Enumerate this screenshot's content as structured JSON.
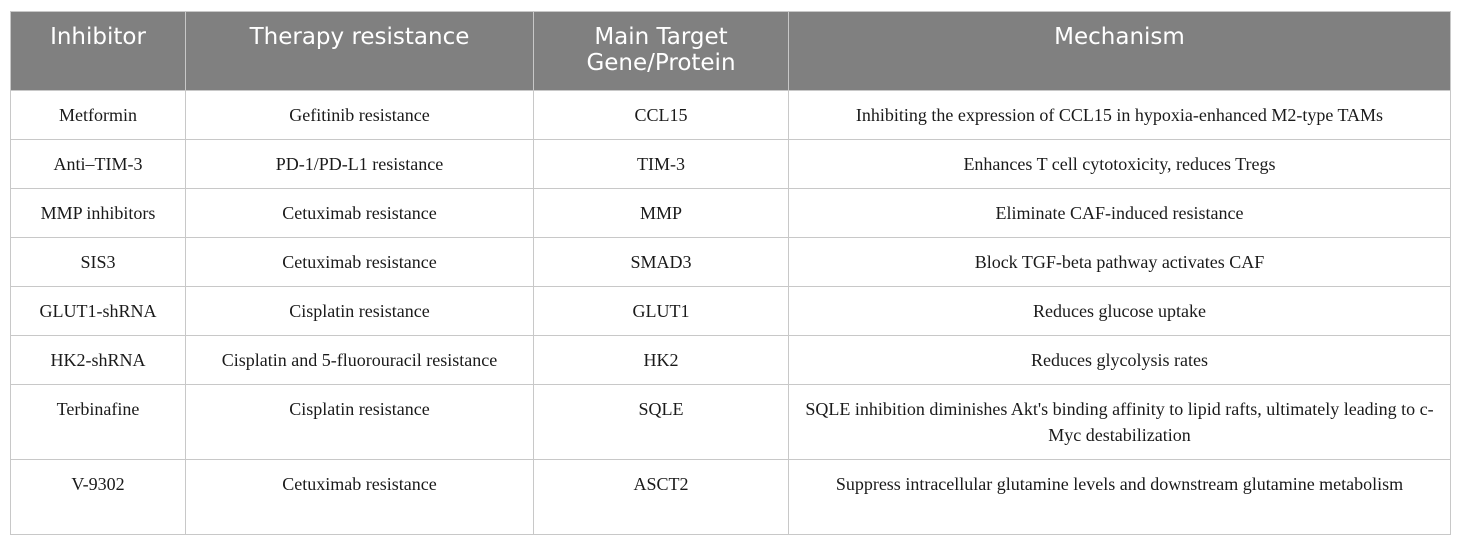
{
  "table": {
    "headers": [
      "Inhibitor",
      "Therapy resistance",
      "Main Target Gene/Protein",
      "Mechanism"
    ],
    "rows": [
      [
        "Metformin",
        "Gefitinib resistance",
        "CCL15",
        "Inhibiting the expression of CCL15 in hypoxia-enhanced M2-type TAMs"
      ],
      [
        "Anti–TIM-3",
        "PD-1/PD-L1 resistance",
        "TIM-3",
        "Enhances T cell cytotoxicity, reduces Tregs"
      ],
      [
        "MMP inhibitors",
        "Cetuximab resistance",
        "MMP",
        "Eliminate CAF-induced resistance"
      ],
      [
        "SIS3",
        "Cetuximab resistance",
        "SMAD3",
        "Block TGF-beta pathway activates CAF"
      ],
      [
        "GLUT1-shRNA",
        "Cisplatin resistance",
        "GLUT1",
        "Reduces glucose uptake"
      ],
      [
        "HK2-shRNA",
        "Cisplatin and 5-fluorouracil resistance",
        "HK2",
        "Reduces glycolysis rates"
      ],
      [
        "Terbinafine",
        "Cisplatin resistance",
        "SQLE",
        "SQLE inhibition diminishes Akt's binding affinity to lipid rafts, ultimately leading to c-Myc destabilization"
      ],
      [
        "V-9302",
        "Cetuximab resistance",
        "ASCT2",
        "Suppress intracellular glutamine levels and downstream glutamine metabolism"
      ]
    ]
  },
  "colors": {
    "header_bg": "#808080",
    "header_text": "#ffffff",
    "border": "#c8c8c8",
    "body_text": "#1a1a1a"
  }
}
